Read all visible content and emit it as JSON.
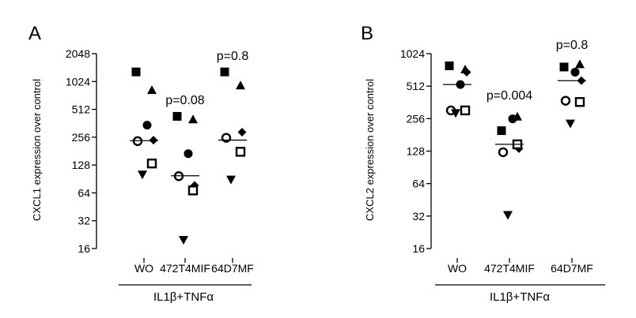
{
  "chart_data": [
    {
      "type": "scatter",
      "panel_label": "A",
      "ylabel": "CXCL1 expression over control",
      "yscale": "log2",
      "ylim": [
        16,
        2048
      ],
      "yticks": [
        "16",
        "32",
        "64",
        "128",
        "256",
        "512",
        "1024",
        "2048"
      ],
      "categories": [
        "WO",
        "472T4MIF",
        "64D7MF"
      ],
      "group_label": "IL1β+TNFα",
      "annotations": [
        {
          "category": "472T4MIF",
          "text": "p=0.08"
        },
        {
          "category": "64D7MF",
          "text": "p=0.8"
        }
      ],
      "medians": [
        235,
        98,
        238
      ],
      "series": [
        {
          "name": "filled-square",
          "marker": "square",
          "filled": true,
          "values": [
            1300,
            430,
            1300
          ]
        },
        {
          "name": "filled-triangle-up",
          "marker": "triangle-up",
          "filled": true,
          "values": [
            820,
            395,
            920
          ]
        },
        {
          "name": "filled-circle",
          "marker": "circle",
          "filled": true,
          "values": [
            345,
            170,
            null
          ]
        },
        {
          "name": "filled-diamond",
          "marker": "diamond",
          "filled": true,
          "values": [
            238,
            77,
            290
          ]
        },
        {
          "name": "open-circle",
          "marker": "circle",
          "filled": false,
          "values": [
            232,
            97,
            252
          ]
        },
        {
          "name": "open-square",
          "marker": "square",
          "filled": false,
          "values": [
            133,
            68,
            178
          ]
        },
        {
          "name": "filled-triangle-down",
          "marker": "triangle-down",
          "filled": true,
          "values": [
            102,
            20,
            90
          ]
        }
      ]
    },
    {
      "type": "scatter",
      "panel_label": "B",
      "ylabel": "CXCL2 expression over control",
      "yscale": "log2",
      "ylim": [
        16,
        1024
      ],
      "yticks": [
        "16",
        "32",
        "64",
        "128",
        "256",
        "512",
        "1024"
      ],
      "categories": [
        "WO",
        "472T4MIF",
        "64D7MF"
      ],
      "group_label": "IL1β+TNFα",
      "annotations": [
        {
          "category": "472T4MIF",
          "text": "p=0.004"
        },
        {
          "category": "64D7MF",
          "text": "p=0.8"
        }
      ],
      "medians": [
        530,
        148,
        575
      ],
      "series": [
        {
          "name": "filled-square",
          "marker": "square",
          "filled": true,
          "values": [
            790,
            198,
            770
          ]
        },
        {
          "name": "filled-triangle-up",
          "marker": "triangle-up",
          "filled": true,
          "values": [
            725,
            265,
            810
          ]
        },
        {
          "name": "filled-circle",
          "marker": "circle",
          "filled": true,
          "values": [
            530,
            255,
            690
          ]
        },
        {
          "name": "filled-diamond",
          "marker": "diamond",
          "filled": true,
          "values": [
            690,
            135,
            575
          ]
        },
        {
          "name": "open-circle",
          "marker": "circle",
          "filled": false,
          "values": [
            305,
            125,
            375
          ]
        },
        {
          "name": "open-square",
          "marker": "square",
          "filled": false,
          "values": [
            305,
            148,
            365
          ]
        },
        {
          "name": "filled-triangle-down",
          "marker": "triangle-down",
          "filled": true,
          "values": [
            290,
            33,
            232
          ]
        }
      ]
    }
  ]
}
